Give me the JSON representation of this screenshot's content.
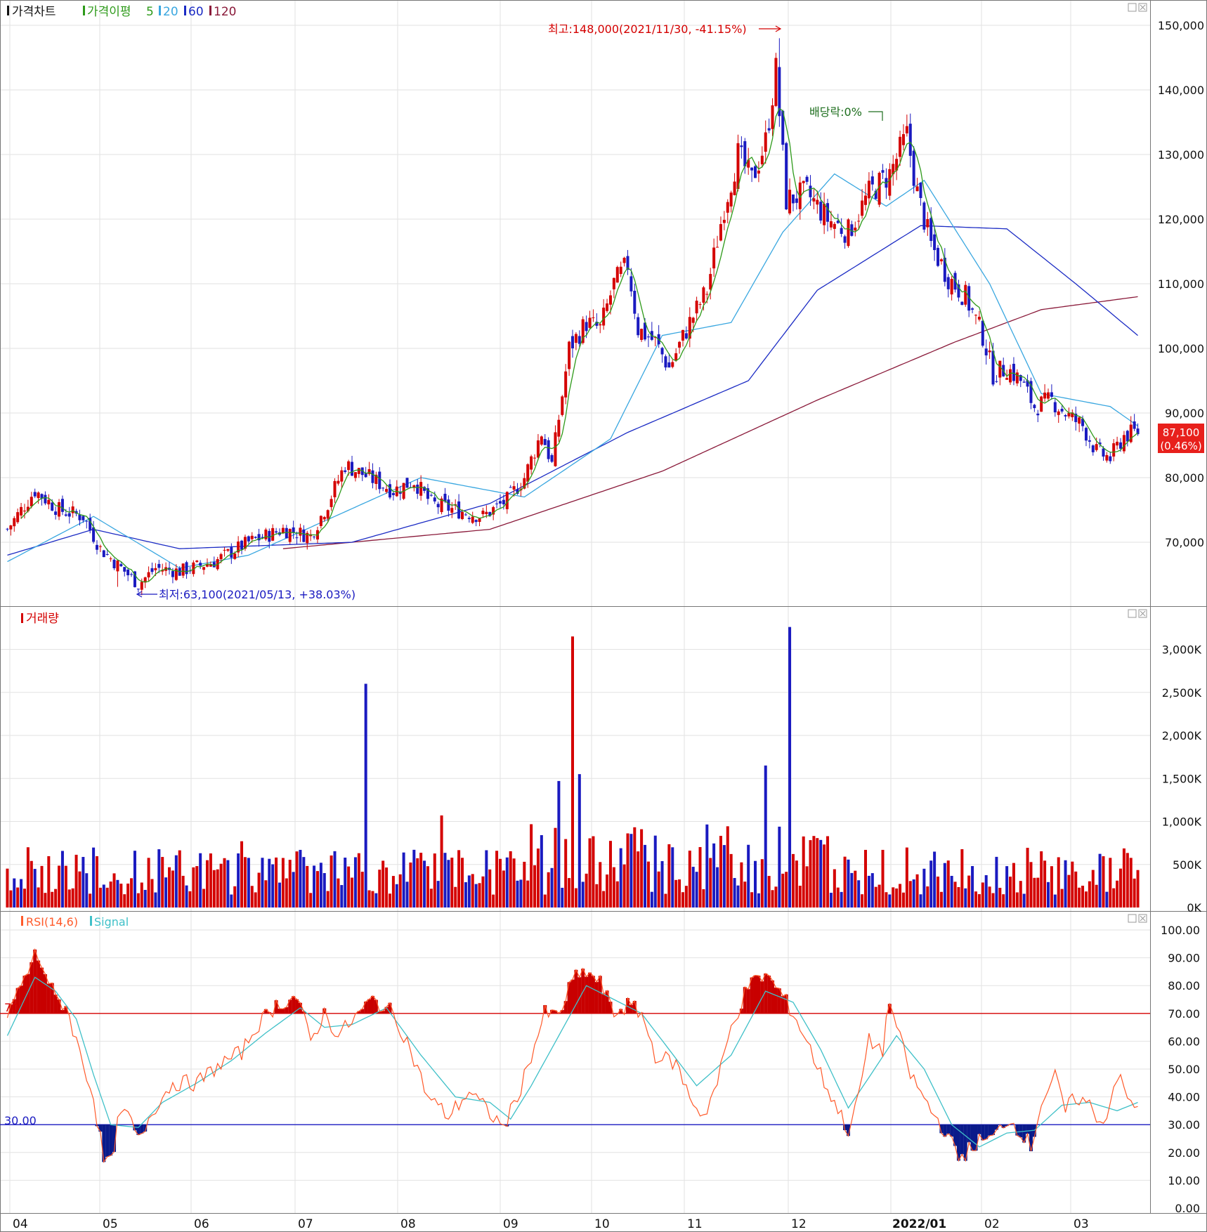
{
  "price_panel": {
    "legend": {
      "title": "가격차트",
      "ma_label": "가격이평",
      "ma5": "5",
      "ma20": "20",
      "ma60": "60",
      "ma120": "120"
    },
    "high_annotation": "최고:148,000(2021/11/30, -41.15%)",
    "low_annotation": "최저:63,100(2021/05/13, +38.03%)",
    "dividend_annotation": "배당락:0%",
    "last_price": "87,100",
    "last_change": "(0.46%)",
    "y_ticks": [
      "150,000",
      "140,000",
      "130,000",
      "120,000",
      "110,000",
      "100,000",
      "90,000",
      "80,000",
      "70,000"
    ]
  },
  "volume_panel": {
    "title": "거래량",
    "y_ticks": [
      "3,000K",
      "2,500K",
      "2,000K",
      "1,500K",
      "1,000K",
      "500K",
      "0K"
    ]
  },
  "rsi_panel": {
    "title": "RSI(14,6)",
    "signal": "Signal",
    "label70": "70",
    "label30": "30.00",
    "y_ticks": [
      "100.00",
      "90.00",
      "80.00",
      "70.00",
      "60.00",
      "50.00",
      "40.00",
      "30.00",
      "20.00",
      "10.00",
      "0.00"
    ]
  },
  "x_ticks": [
    "04",
    "05",
    "06",
    "07",
    "08",
    "09",
    "10",
    "11",
    "12",
    "2022/01",
    "02",
    "03"
  ],
  "colors": {
    "up": "#d40000",
    "down": "#1a1ac0",
    "ma5": "#2e9a1a",
    "ma20": "#3aa7e0",
    "ma60": "#1b2bc4",
    "ma120": "#8a1a3a",
    "rsi": "#ff5a2a",
    "signal": "#3fc0c8",
    "grid": "#e2e2e2"
  },
  "chart_data": [
    {
      "type": "candlestick",
      "ylim": [
        60000,
        152000
      ],
      "x_range": [
        "2021-04",
        "2022-03"
      ],
      "close_path": [
        [
          0,
          72000
        ],
        [
          8,
          78000
        ],
        [
          15,
          75000
        ],
        [
          22,
          74000
        ],
        [
          27,
          69000
        ],
        [
          33,
          66000
        ],
        [
          38,
          63500
        ],
        [
          43,
          66000
        ],
        [
          50,
          65500
        ],
        [
          60,
          67000
        ],
        [
          70,
          70000
        ],
        [
          80,
          72000
        ],
        [
          88,
          71000
        ],
        [
          93,
          76000
        ],
        [
          98,
          82000
        ],
        [
          105,
          80000
        ],
        [
          112,
          78000
        ],
        [
          118,
          79500
        ],
        [
          123,
          76000
        ],
        [
          130,
          75000
        ],
        [
          138,
          74000
        ],
        [
          145,
          76500
        ],
        [
          150,
          80000
        ],
        [
          155,
          87000
        ],
        [
          158,
          82000
        ],
        [
          163,
          100000
        ],
        [
          168,
          104000
        ],
        [
          172,
          103000
        ],
        [
          176,
          110000
        ],
        [
          180,
          113000
        ],
        [
          183,
          103000
        ],
        [
          188,
          101000
        ],
        [
          192,
          97000
        ],
        [
          198,
          104000
        ],
        [
          203,
          109000
        ],
        [
          208,
          122000
        ],
        [
          212,
          130000
        ],
        [
          216,
          126000
        ],
        [
          220,
          132000
        ],
        [
          223,
          143000
        ],
        [
          226,
          123000
        ],
        [
          232,
          124000
        ],
        [
          238,
          120000
        ],
        [
          244,
          118000
        ],
        [
          250,
          124000
        ],
        [
          256,
          127000
        ],
        [
          261,
          133000
        ],
        [
          264,
          124000
        ],
        [
          268,
          116000
        ],
        [
          273,
          111000
        ],
        [
          278,
          108000
        ],
        [
          283,
          102000
        ],
        [
          286,
          96000
        ],
        [
          290,
          97000
        ],
        [
          294,
          95000
        ],
        [
          298,
          91000
        ],
        [
          303,
          92000
        ],
        [
          308,
          89500
        ],
        [
          312,
          88000
        ],
        [
          316,
          84000
        ],
        [
          320,
          83000
        ],
        [
          324,
          86500
        ],
        [
          328,
          87100
        ]
      ],
      "ma20_path": [
        [
          0,
          67000
        ],
        [
          25,
          74000
        ],
        [
          50,
          66000
        ],
        [
          70,
          68000
        ],
        [
          95,
          74000
        ],
        [
          120,
          80000
        ],
        [
          150,
          77000
        ],
        [
          175,
          86000
        ],
        [
          190,
          102000
        ],
        [
          210,
          104000
        ],
        [
          225,
          118000
        ],
        [
          240,
          127000
        ],
        [
          255,
          122000
        ],
        [
          266,
          126000
        ],
        [
          285,
          110000
        ],
        [
          300,
          93000
        ],
        [
          320,
          91000
        ],
        [
          328,
          88000
        ]
      ],
      "ma60_path": [
        [
          0,
          68000
        ],
        [
          25,
          72000
        ],
        [
          50,
          69000
        ],
        [
          100,
          70000
        ],
        [
          140,
          76000
        ],
        [
          180,
          87000
        ],
        [
          215,
          95000
        ],
        [
          235,
          109000
        ],
        [
          265,
          119000
        ],
        [
          290,
          118500
        ],
        [
          310,
          110000
        ],
        [
          328,
          102000
        ]
      ],
      "ma120_path": [
        [
          80,
          69000
        ],
        [
          140,
          72000
        ],
        [
          190,
          81000
        ],
        [
          235,
          92000
        ],
        [
          275,
          101000
        ],
        [
          300,
          106000
        ],
        [
          328,
          108000
        ]
      ],
      "high": 148000,
      "low": 63100,
      "last": 87100
    },
    {
      "type": "bar",
      "title": "거래량",
      "ylim": [
        0,
        3300
      ],
      "unit": "K",
      "spikes": [
        {
          "x": 104,
          "value": 2600
        },
        {
          "x": 164,
          "value": 3150
        },
        {
          "x": 166,
          "value": 1550
        },
        {
          "x": 160,
          "value": 1470
        },
        {
          "x": 126,
          "value": 1070
        },
        {
          "x": 220,
          "value": 1650
        },
        {
          "x": 227,
          "value": 3260
        },
        {
          "x": 6,
          "value": 700
        },
        {
          "x": 68,
          "value": 770
        }
      ],
      "baseline_range": [
        150,
        700
      ]
    },
    {
      "type": "line",
      "title": "RSI(14,6)",
      "ylim": [
        0,
        100
      ],
      "thresholds": [
        70,
        30
      ],
      "rsi_path": [
        [
          0,
          70
        ],
        [
          6,
          85
        ],
        [
          8,
          91
        ],
        [
          10,
          88
        ],
        [
          14,
          75
        ],
        [
          17,
          73
        ],
        [
          20,
          60
        ],
        [
          25,
          40
        ],
        [
          28,
          17
        ],
        [
          30,
          16
        ],
        [
          32,
          30
        ],
        [
          34,
          35
        ],
        [
          37,
          28
        ],
        [
          38,
          24
        ],
        [
          42,
          35
        ],
        [
          48,
          45
        ],
        [
          55,
          45
        ],
        [
          62,
          52
        ],
        [
          68,
          56
        ],
        [
          72,
          65
        ],
        [
          78,
          73
        ],
        [
          84,
          76
        ],
        [
          88,
          60
        ],
        [
          92,
          70
        ],
        [
          96,
          62
        ],
        [
          102,
          70
        ],
        [
          106,
          75
        ],
        [
          112,
          70
        ],
        [
          116,
          60
        ],
        [
          122,
          40
        ],
        [
          128,
          33
        ],
        [
          134,
          42
        ],
        [
          140,
          34
        ],
        [
          144,
          29
        ],
        [
          148,
          40
        ],
        [
          152,
          55
        ],
        [
          156,
          70
        ],
        [
          160,
          69
        ],
        [
          164,
          82
        ],
        [
          168,
          85
        ],
        [
          172,
          81
        ],
        [
          176,
          70
        ],
        [
          180,
          73
        ],
        [
          184,
          70
        ],
        [
          188,
          55
        ],
        [
          194,
          52
        ],
        [
          198,
          40
        ],
        [
          202,
          33
        ],
        [
          206,
          45
        ],
        [
          210,
          65
        ],
        [
          215,
          80
        ],
        [
          220,
          84
        ],
        [
          224,
          78
        ],
        [
          228,
          70
        ],
        [
          232,
          60
        ],
        [
          236,
          48
        ],
        [
          240,
          38
        ],
        [
          244,
          28
        ],
        [
          246,
          35
        ],
        [
          250,
          60
        ],
        [
          254,
          57
        ],
        [
          256,
          75
        ],
        [
          258,
          65
        ],
        [
          262,
          48
        ],
        [
          268,
          35
        ],
        [
          272,
          28
        ],
        [
          276,
          18
        ],
        [
          282,
          24
        ],
        [
          286,
          25
        ],
        [
          290,
          32
        ],
        [
          294,
          28
        ],
        [
          297,
          22
        ],
        [
          300,
          38
        ],
        [
          304,
          47
        ],
        [
          307,
          35
        ],
        [
          310,
          40
        ],
        [
          314,
          37
        ],
        [
          318,
          30
        ],
        [
          322,
          48
        ],
        [
          326,
          37
        ],
        [
          328,
          36
        ]
      ],
      "signal_path": [
        [
          0,
          62
        ],
        [
          8,
          83
        ],
        [
          14,
          78
        ],
        [
          20,
          68
        ],
        [
          25,
          48
        ],
        [
          30,
          30
        ],
        [
          38,
          29
        ],
        [
          45,
          38
        ],
        [
          55,
          45
        ],
        [
          65,
          53
        ],
        [
          75,
          63
        ],
        [
          85,
          72
        ],
        [
          92,
          65
        ],
        [
          100,
          66
        ],
        [
          110,
          72
        ],
        [
          120,
          55
        ],
        [
          130,
          40
        ],
        [
          140,
          38
        ],
        [
          146,
          32
        ],
        [
          152,
          44
        ],
        [
          160,
          62
        ],
        [
          168,
          80
        ],
        [
          176,
          75
        ],
        [
          184,
          70
        ],
        [
          192,
          57
        ],
        [
          200,
          44
        ],
        [
          210,
          55
        ],
        [
          220,
          78
        ],
        [
          228,
          74
        ],
        [
          236,
          57
        ],
        [
          244,
          36
        ],
        [
          250,
          47
        ],
        [
          258,
          62
        ],
        [
          266,
          50
        ],
        [
          274,
          30
        ],
        [
          282,
          22
        ],
        [
          290,
          27
        ],
        [
          298,
          28
        ],
        [
          306,
          37
        ],
        [
          314,
          38
        ],
        [
          322,
          35
        ],
        [
          328,
          38
        ]
      ]
    }
  ]
}
